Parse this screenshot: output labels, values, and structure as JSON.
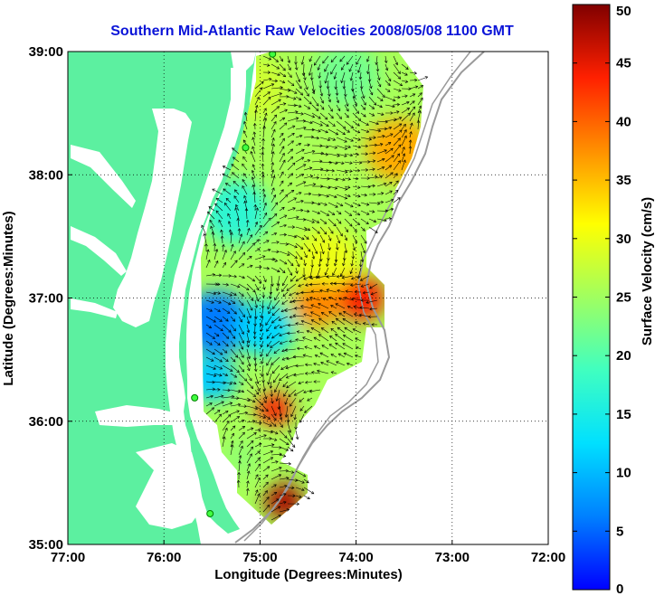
{
  "chart_data": {
    "type": "heatmap",
    "title": "Southern Mid-Atlantic Raw Velocities 2008/05/08 1100 GMT",
    "xlabel": "Longitude (Degrees:Minutes)",
    "ylabel": "Latitude (Degrees:Minutes)",
    "colorbar_label": "Surface Velocity (cm/s)",
    "xlim": [
      -77,
      -72
    ],
    "ylim": [
      35,
      39
    ],
    "x_ticks": [
      {
        "value": -77,
        "label": "77:00"
      },
      {
        "value": -76,
        "label": "76:00"
      },
      {
        "value": -75,
        "label": "75:00"
      },
      {
        "value": -74,
        "label": "74:00"
      },
      {
        "value": -73,
        "label": "73:00"
      },
      {
        "value": -72,
        "label": "72:00"
      }
    ],
    "y_ticks": [
      {
        "value": 35,
        "label": "35:00"
      },
      {
        "value": 36,
        "label": "36:00"
      },
      {
        "value": 37,
        "label": "37:00"
      },
      {
        "value": 38,
        "label": "38:00"
      },
      {
        "value": 39,
        "label": "39:00"
      }
    ],
    "colorbar_range": [
      0,
      50
    ],
    "colorbar_ticks": [
      {
        "value": 0,
        "label": "0"
      },
      {
        "value": 5,
        "label": "5"
      },
      {
        "value": 10,
        "label": "10"
      },
      {
        "value": 15,
        "label": "15"
      },
      {
        "value": 20,
        "label": "20"
      },
      {
        "value": 25,
        "label": "25"
      },
      {
        "value": 30,
        "label": "30"
      },
      {
        "value": 35,
        "label": "35"
      },
      {
        "value": 40,
        "label": "40"
      },
      {
        "value": 45,
        "label": "45"
      },
      {
        "value": 50,
        "label": "50"
      }
    ],
    "colormap": "jet",
    "grid": true,
    "land_color": "#5cf0a0",
    "title_color": "#0a14d8",
    "stations": [
      {
        "lon": -74.87,
        "lat": 38.98
      },
      {
        "lon": -75.15,
        "lat": 38.22
      },
      {
        "lon": -75.68,
        "lat": 36.19
      },
      {
        "lon": -75.52,
        "lat": 35.25
      }
    ],
    "velocity_blobs": [
      {
        "lon": -75.05,
        "lat": 38.7,
        "speed": 28,
        "radius": 0.35
      },
      {
        "lon": -74.1,
        "lat": 38.8,
        "speed": 22,
        "radius": 0.35
      },
      {
        "lon": -73.55,
        "lat": 38.2,
        "speed": 36,
        "radius": 0.35
      },
      {
        "lon": -74.3,
        "lat": 38.0,
        "speed": 26,
        "radius": 0.3
      },
      {
        "lon": -75.25,
        "lat": 37.7,
        "speed": 17,
        "radius": 0.35
      },
      {
        "lon": -74.3,
        "lat": 37.3,
        "speed": 30,
        "radius": 0.35
      },
      {
        "lon": -73.95,
        "lat": 37.0,
        "speed": 44,
        "radius": 0.25
      },
      {
        "lon": -74.4,
        "lat": 36.95,
        "speed": 38,
        "radius": 0.25
      },
      {
        "lon": -75.45,
        "lat": 36.8,
        "speed": 6,
        "radius": 0.35
      },
      {
        "lon": -74.95,
        "lat": 36.75,
        "speed": 12,
        "radius": 0.3
      },
      {
        "lon": -75.5,
        "lat": 36.35,
        "speed": 11,
        "radius": 0.25
      },
      {
        "lon": -74.85,
        "lat": 36.1,
        "speed": 44,
        "radius": 0.18
      },
      {
        "lon": -74.75,
        "lat": 35.35,
        "speed": 48,
        "radius": 0.2
      },
      {
        "lon": -75.2,
        "lat": 35.7,
        "speed": 24,
        "radius": 0.2
      }
    ]
  }
}
